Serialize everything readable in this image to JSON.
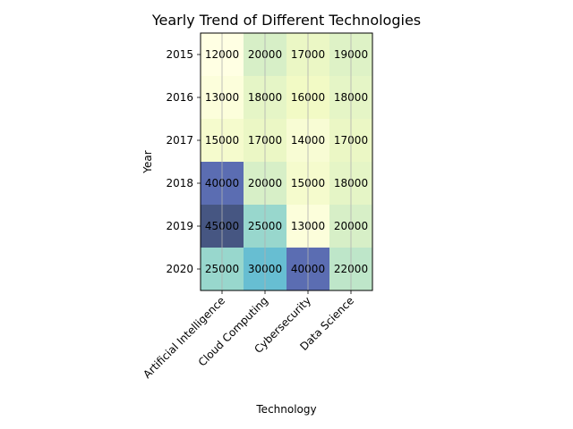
{
  "chart_data": {
    "type": "heatmap",
    "title": "Yearly Trend of Different Technologies",
    "xlabel": "Technology",
    "ylabel": "Year",
    "x_categories": [
      "Artificial Intelligence",
      "Cloud Computing",
      "Cybersecurity",
      "Data Science"
    ],
    "y_categories": [
      "2015",
      "2016",
      "2017",
      "2018",
      "2019",
      "2020"
    ],
    "values": [
      [
        12000,
        20000,
        17000,
        19000
      ],
      [
        13000,
        18000,
        16000,
        18000
      ],
      [
        15000,
        17000,
        14000,
        17000
      ],
      [
        40000,
        20000,
        15000,
        18000
      ],
      [
        45000,
        25000,
        13000,
        20000
      ],
      [
        25000,
        30000,
        40000,
        22000
      ]
    ],
    "colormap": "YlGnBu",
    "grid": true,
    "colorbar": false
  }
}
